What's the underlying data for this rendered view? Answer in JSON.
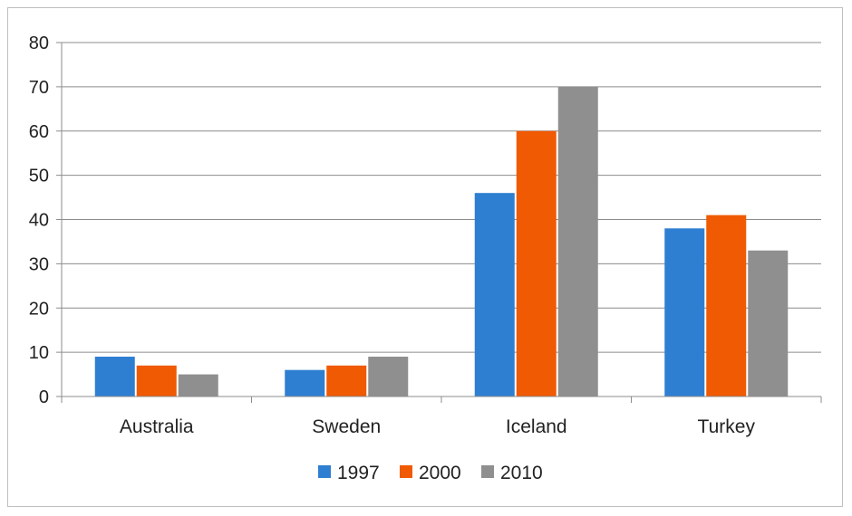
{
  "chart_data": {
    "type": "bar",
    "categories": [
      "Australia",
      "Sweden",
      "Iceland",
      "Turkey"
    ],
    "series": [
      {
        "name": "1997",
        "color": "#2e7fd1",
        "values": [
          9,
          6,
          46,
          38
        ]
      },
      {
        "name": "2000",
        "color": "#f05a02",
        "values": [
          7,
          7,
          60,
          41
        ]
      },
      {
        "name": "2010",
        "color": "#8f8f8f",
        "values": [
          5,
          9,
          70,
          33
        ]
      }
    ],
    "title": "",
    "xlabel": "",
    "ylabel": "",
    "ylim": [
      0,
      80
    ],
    "yticks": [
      "0",
      "10",
      "20",
      "30",
      "40",
      "50",
      "60",
      "70",
      "80"
    ],
    "grid": true,
    "legend_position": "bottom"
  }
}
